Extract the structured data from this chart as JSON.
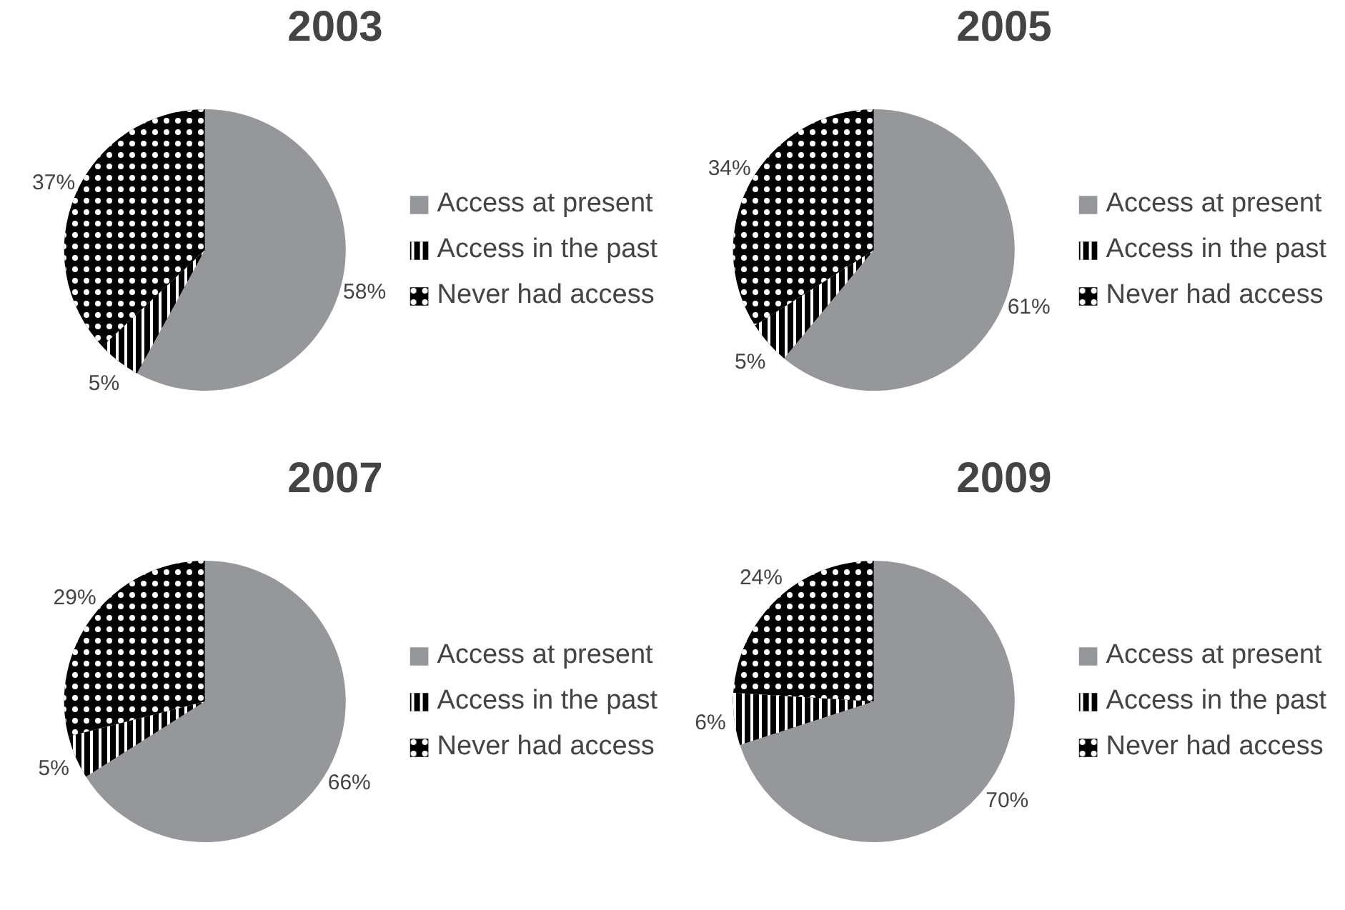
{
  "chart_data": [
    {
      "type": "pie",
      "title": "2003",
      "categories": [
        "Access at present",
        "Access in the past",
        "Never had access"
      ],
      "values": [
        58,
        5,
        37
      ],
      "value_labels": [
        "58%",
        "5%",
        "37%"
      ],
      "colors": [
        "#96979b",
        "#000000",
        "#000000"
      ],
      "legend": "right"
    },
    {
      "type": "pie",
      "title": "2005",
      "categories": [
        "Access at present",
        "Access in the past",
        "Never had access"
      ],
      "values": [
        61,
        5,
        34
      ],
      "value_labels": [
        "61%",
        "5%",
        "34%"
      ],
      "colors": [
        "#96979b",
        "#000000",
        "#000000"
      ],
      "legend": "right"
    },
    {
      "type": "pie",
      "title": "2007",
      "categories": [
        "Access at present",
        "Access in the past",
        "Never had access"
      ],
      "values": [
        66,
        5,
        29
      ],
      "value_labels": [
        "66%",
        "5%",
        "29%"
      ],
      "colors": [
        "#96979b",
        "#000000",
        "#000000"
      ],
      "legend": "right"
    },
    {
      "type": "pie",
      "title": "2009",
      "categories": [
        "Access at present",
        "Access in the past",
        "Never had access"
      ],
      "values": [
        70,
        6,
        24
      ],
      "value_labels": [
        "70%",
        "6%",
        "24%"
      ],
      "colors": [
        "#96979b",
        "#000000",
        "#000000"
      ],
      "legend": "right"
    }
  ]
}
